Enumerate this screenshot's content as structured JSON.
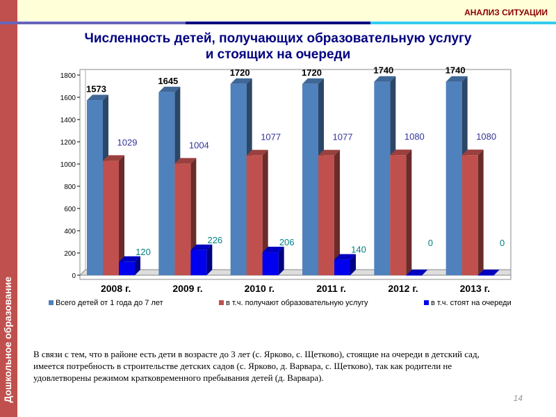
{
  "sidebar": {
    "label": "Дошкольное образование"
  },
  "header": {
    "section": "АНАЛИЗ СИТУАЦИИ"
  },
  "stripe_colors": [
    "#6666bb",
    "#000080",
    "#33ccee"
  ],
  "title_line1": "Численность детей, получающих образовательную услугу",
  "title_line2": "и стоящих на очереди",
  "chart_data": {
    "type": "bar",
    "title": "Численность детей, получающих образовательную услугу и стоящих на очереди",
    "categories": [
      "2008 г.",
      "2009 г.",
      "2010 г.",
      "2011 г.",
      "2012 г.",
      "2013 г."
    ],
    "series": [
      {
        "name": "Всего детей от 1 года до 7 лет",
        "color": "#4f81bd",
        "label_color": "#000000",
        "values": [
          1573,
          1645,
          1720,
          1720,
          1740,
          1740
        ]
      },
      {
        "name": "в т.ч. получают образовательную услугу",
        "color": "#c0504d",
        "label_color": "#333399",
        "values": [
          1029,
          1004,
          1077,
          1077,
          1080,
          1080
        ]
      },
      {
        "name": "в т.ч. стоят на очереди",
        "color": "#0000ee",
        "label_color": "#008080",
        "values": [
          120,
          226,
          206,
          140,
          0,
          0
        ]
      }
    ],
    "ylim": [
      0,
      1800
    ],
    "yticks": [
      0,
      200,
      400,
      600,
      800,
      1000,
      1200,
      1400,
      1600,
      1800
    ],
    "legend": "bottom",
    "grid": false
  },
  "note": "В связи с тем, что в районе есть дети в возрасте до 3 лет (с. Ярково, с. Щетково), стоящие на очереди в детский сад, имеется потребность в строительстве детских садов (с. Ярково, д. Варвара, с. Щетково), так как родители не удовлетворены режимом кратковременного пребывания детей (д. Варвара).",
  "page_number": "14"
}
